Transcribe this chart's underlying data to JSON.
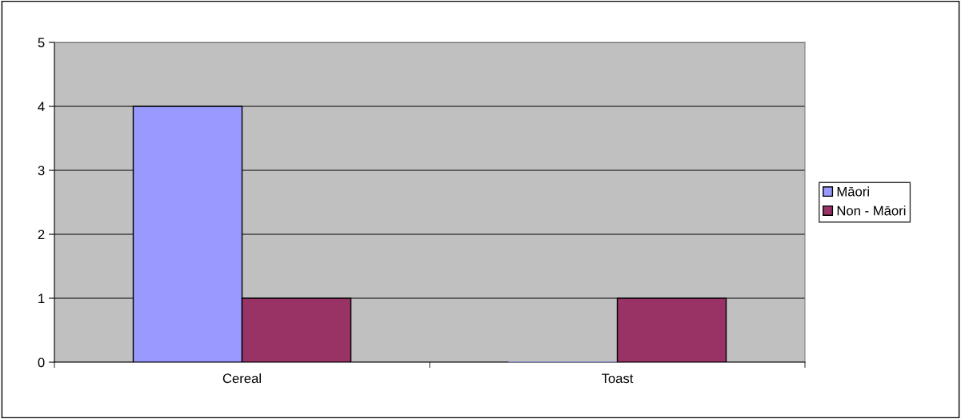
{
  "chart_data": {
    "type": "bar",
    "categories": [
      "Cereal",
      "Toast"
    ],
    "series": [
      {
        "name": "Māori",
        "color": "#9999ff",
        "values": [
          4,
          0
        ]
      },
      {
        "name": "Non - Māori",
        "color": "#993366",
        "values": [
          1,
          1
        ]
      }
    ],
    "ylim": [
      0,
      5
    ],
    "yticks": [
      0,
      1,
      2,
      3,
      4,
      5
    ],
    "grid": "y",
    "legend": "right"
  }
}
